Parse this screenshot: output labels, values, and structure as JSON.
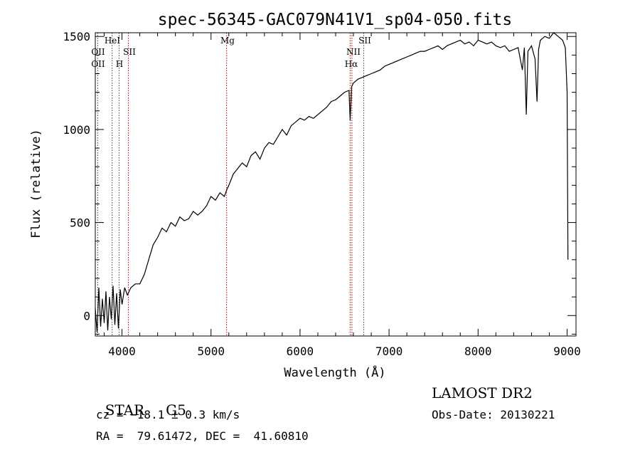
{
  "chart_data": {
    "type": "line",
    "title": "spec-56345-GAC079N41V1_sp04-050.fits",
    "xlabel": "Wavelength (Å)",
    "ylabel": "Flux (relative)",
    "xlim": [
      3700,
      9100
    ],
    "ylim": [
      -110,
      1520
    ],
    "xticks": [
      4000,
      5000,
      6000,
      7000,
      8000,
      9000
    ],
    "yticks": [
      0,
      500,
      1000,
      1500
    ],
    "grid": false,
    "line_color": "#000000",
    "marker_color": "#8b1a1a",
    "series": [
      {
        "x": [
          3700,
          3720,
          3740,
          3760,
          3780,
          3800,
          3820,
          3840,
          3860,
          3880,
          3900,
          3920,
          3940,
          3960,
          3980,
          4000,
          4030,
          4060,
          4100,
          4150,
          4200,
          4250,
          4300,
          4350,
          4400,
          4450,
          4500,
          4550,
          4600,
          4650,
          4700,
          4750,
          4800,
          4850,
          4900,
          4950,
          5000,
          5050,
          5100,
          5150,
          5180,
          5200,
          5250,
          5300,
          5350,
          5400,
          5450,
          5500,
          5550,
          5600,
          5650,
          5700,
          5750,
          5800,
          5850,
          5900,
          5950,
          6000,
          6050,
          6100,
          6150,
          6200,
          6250,
          6300,
          6350,
          6400,
          6450,
          6500,
          6550,
          6563,
          6580,
          6600,
          6650,
          6700,
          6750,
          6800,
          6850,
          6900,
          6950,
          7000,
          7050,
          7100,
          7150,
          7200,
          7250,
          7300,
          7350,
          7400,
          7450,
          7500,
          7550,
          7600,
          7650,
          7700,
          7750,
          7800,
          7850,
          7900,
          7950,
          8000,
          8050,
          8100,
          8150,
          8200,
          8250,
          8300,
          8350,
          8400,
          8450,
          8498,
          8520,
          8542,
          8560,
          8600,
          8640,
          8662,
          8680,
          8700,
          8750,
          8800,
          8850,
          8900,
          8950,
          8980,
          9000,
          9010
        ],
        "y": [
          40,
          -90,
          150,
          -60,
          90,
          -40,
          130,
          -80,
          100,
          -20,
          160,
          -50,
          120,
          -70,
          140,
          60,
          150,
          110,
          150,
          170,
          170,
          220,
          300,
          380,
          420,
          470,
          450,
          500,
          480,
          530,
          510,
          520,
          560,
          540,
          560,
          590,
          640,
          620,
          660,
          640,
          680,
          700,
          760,
          790,
          820,
          800,
          860,
          880,
          840,
          900,
          930,
          920,
          960,
          1000,
          970,
          1020,
          1040,
          1060,
          1050,
          1070,
          1060,
          1080,
          1100,
          1120,
          1150,
          1160,
          1180,
          1200,
          1210,
          1050,
          1230,
          1250,
          1270,
          1280,
          1290,
          1300,
          1310,
          1320,
          1340,
          1350,
          1360,
          1370,
          1380,
          1390,
          1400,
          1410,
          1420,
          1420,
          1430,
          1440,
          1450,
          1430,
          1450,
          1460,
          1470,
          1480,
          1460,
          1470,
          1450,
          1480,
          1470,
          1460,
          1470,
          1450,
          1440,
          1450,
          1420,
          1430,
          1440,
          1320,
          1440,
          1080,
          1420,
          1450,
          1380,
          1150,
          1430,
          1480,
          1500,
          1490,
          1520,
          1500,
          1480,
          1440,
          1200,
          300
        ]
      }
    ],
    "lines": [
      {
        "wavelength": 3727,
        "labels": [
          "OII",
          "OII"
        ]
      },
      {
        "wavelength": 3889,
        "labels": [
          "HeI"
        ]
      },
      {
        "wavelength": 3968,
        "labels": [
          "H"
        ]
      },
      {
        "wavelength": 4072,
        "labels": [
          "SII"
        ]
      },
      {
        "wavelength": 5175,
        "labels": [
          "Mg"
        ]
      },
      {
        "wavelength": 6563,
        "labels": [
          "Hα"
        ]
      },
      {
        "wavelength": 6583,
        "labels": [
          "NII"
        ]
      },
      {
        "wavelength": 6716,
        "labels": [
          "SII"
        ]
      }
    ]
  },
  "info": {
    "class": "STAR",
    "subclass": "G5",
    "survey": "LAMOST DR2",
    "cz": "cz = −18.1 ± 0.3 km/s",
    "obs_date": "Obs-Date: 20130221",
    "coords": "RA =  79.61472, DEC =  41.60810"
  }
}
